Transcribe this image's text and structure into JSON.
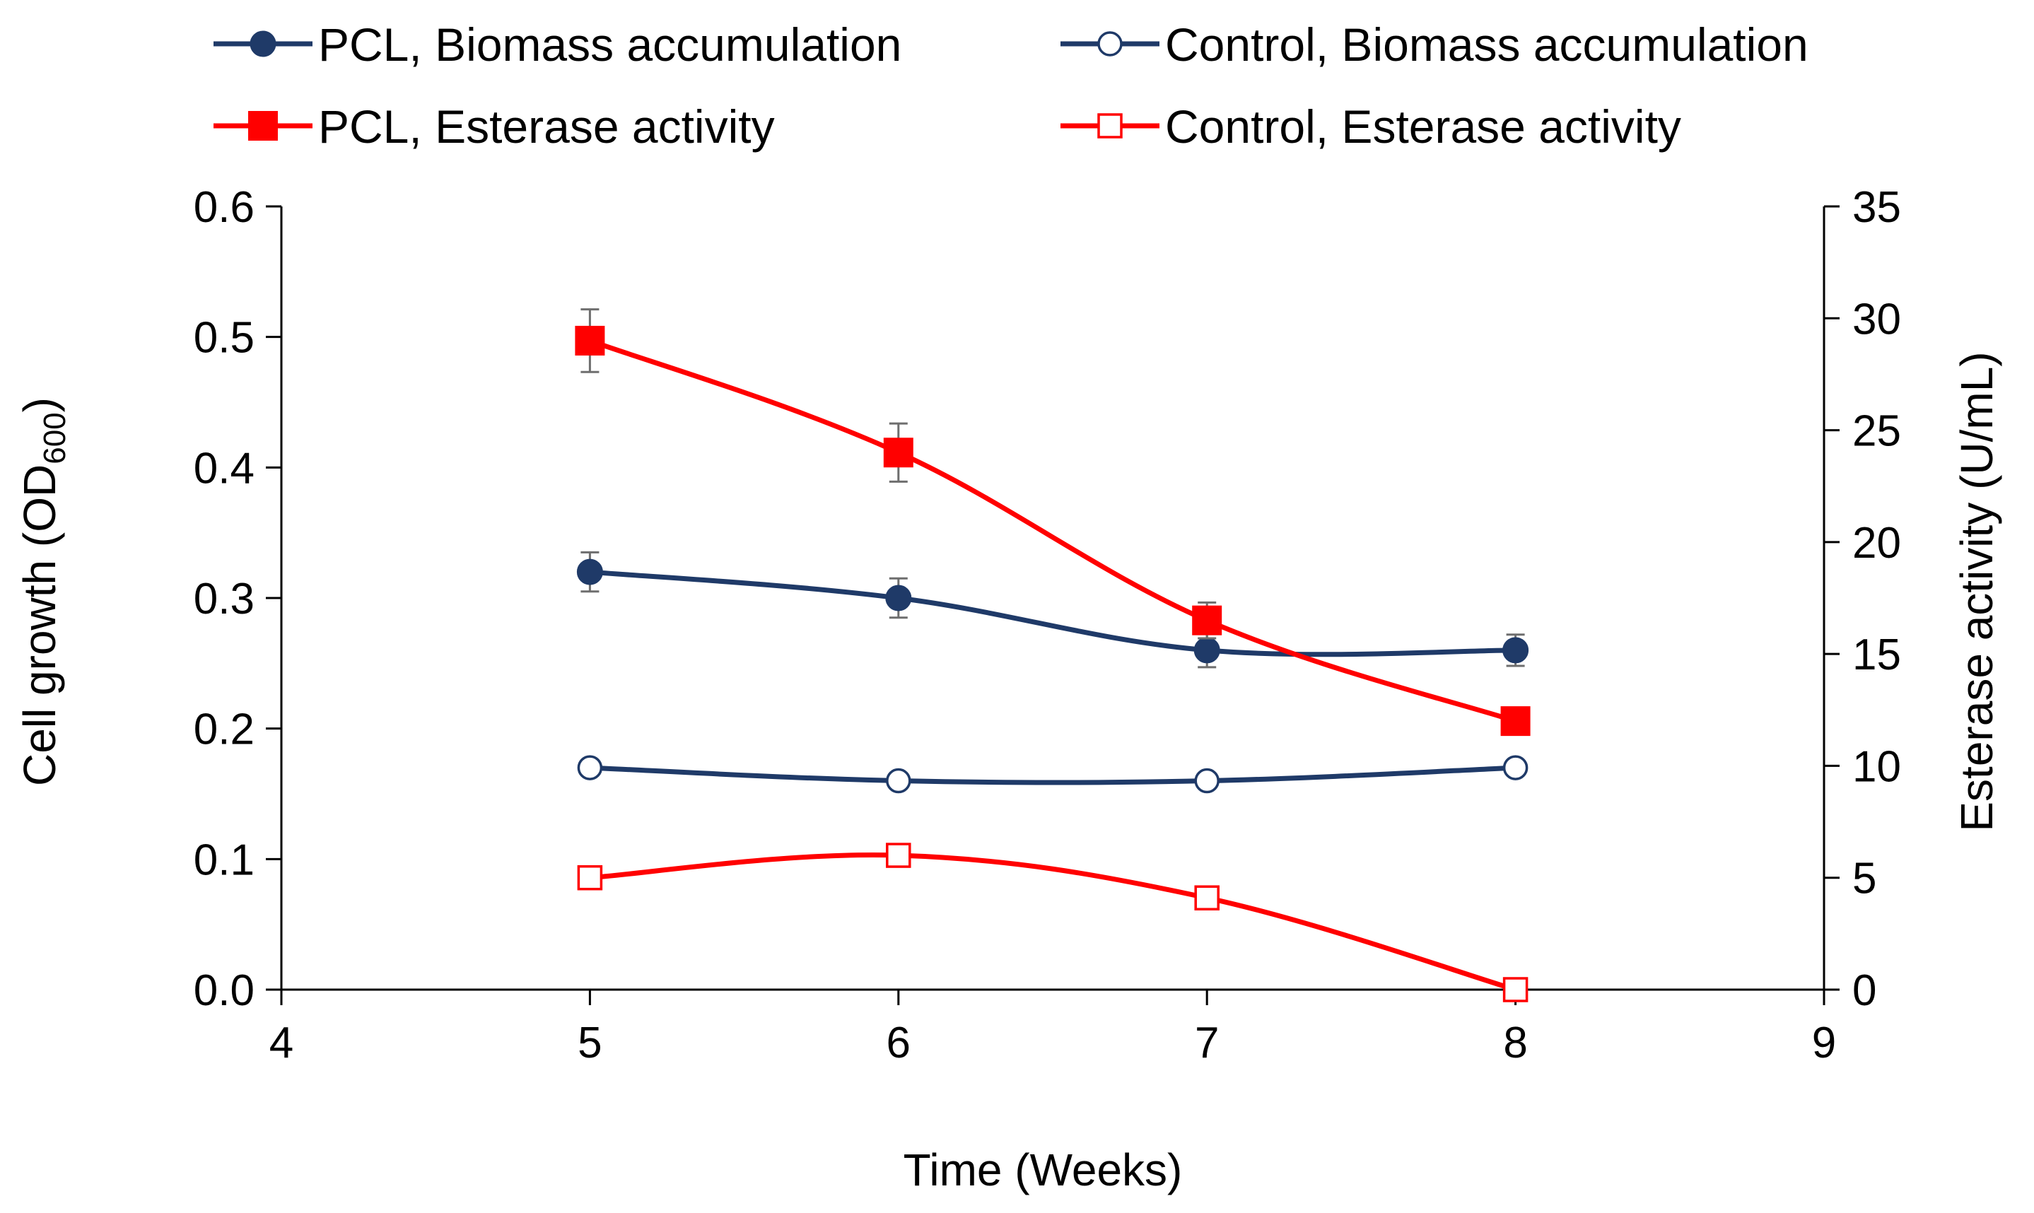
{
  "chart_data": {
    "type": "line",
    "title": "",
    "xlabel": "Time (Weeks)",
    "ylabel": "Cell growth (OD",
    "ylabel_subscript": "600",
    "ylabel_close": ")",
    "y2label": "Esterase activity (U/mL)",
    "xlim": [
      4,
      9
    ],
    "ylim": [
      0.0,
      0.6
    ],
    "y2lim": [
      0,
      35
    ],
    "xticks": [
      4,
      5,
      6,
      7,
      8,
      9
    ],
    "yticks": [
      "0.0",
      "0.1",
      "0.2",
      "0.3",
      "0.4",
      "0.5",
      "0.6"
    ],
    "y2ticks": [
      "0",
      "5",
      "10",
      "15",
      "20",
      "25",
      "30",
      "35"
    ],
    "grid": false,
    "legend_position": "top",
    "series": [
      {
        "name": "PCL, Biomass accumulation",
        "axis": "left",
        "color": "#1f3a68",
        "marker": "circle",
        "filled": true,
        "x": [
          5,
          6,
          7,
          8
        ],
        "y": [
          0.32,
          0.3,
          0.26,
          0.26
        ],
        "error": [
          0.015,
          0.015,
          0.013,
          0.012
        ]
      },
      {
        "name": "Control, Biomass accumulation",
        "axis": "left",
        "color": "#1f3a68",
        "marker": "circle",
        "filled": false,
        "x": [
          5,
          6,
          7,
          8
        ],
        "y": [
          0.17,
          0.16,
          0.16,
          0.17
        ],
        "error": [
          0.004,
          0.004,
          0.004,
          0.004
        ]
      },
      {
        "name": "PCL, Esterase activity",
        "axis": "right",
        "color": "#ff0000",
        "marker": "square",
        "filled": true,
        "x": [
          5,
          6,
          7,
          8
        ],
        "y": [
          29.0,
          24.0,
          16.5,
          12.0
        ],
        "error": [
          1.4,
          1.3,
          0.8,
          0.5
        ]
      },
      {
        "name": "Control, Esterase activity",
        "axis": "right",
        "color": "#ff0000",
        "marker": "square",
        "filled": false,
        "x": [
          5,
          6,
          7,
          8
        ],
        "y": [
          5.0,
          6.0,
          4.1,
          0.0
        ],
        "error": [
          0.4,
          0.4,
          0.3,
          0.2
        ]
      }
    ]
  }
}
